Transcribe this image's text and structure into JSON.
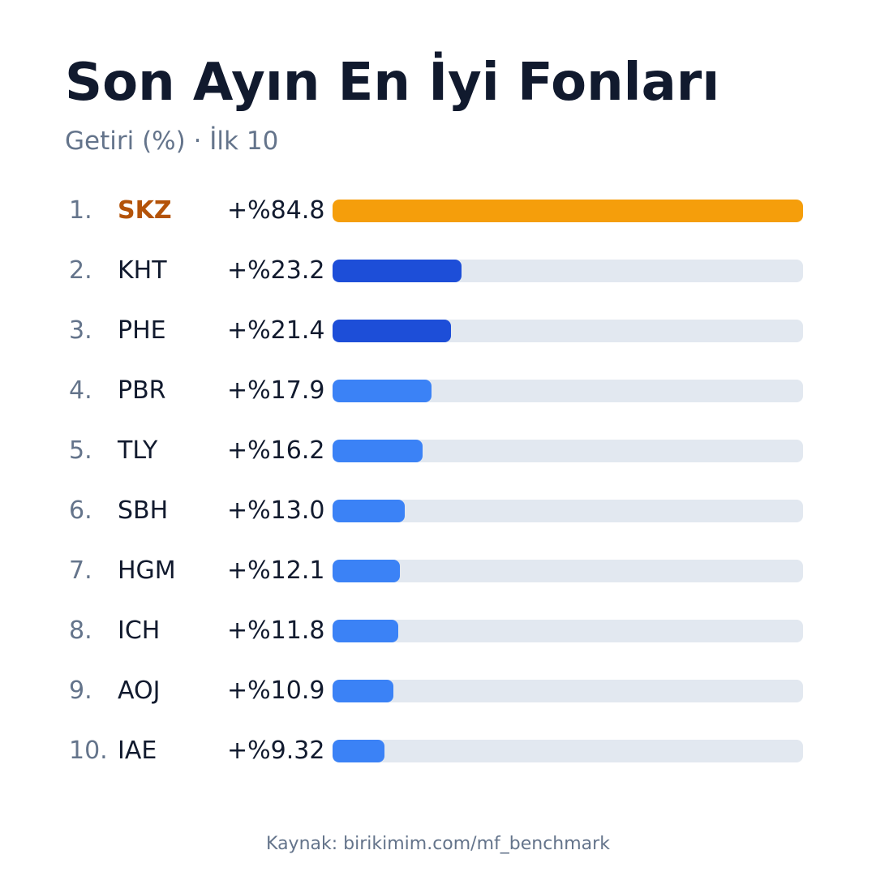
{
  "title": "Son Ayın En İyi Fonları",
  "subtitle": "Getiri (%) · İlk 10",
  "source": "Kaynak: birikimim.com/mf_benchmark",
  "colors": {
    "top": "#f59e0b",
    "top_text": "#b45309",
    "dark_blue": "#1d4ed8",
    "light_blue": "#3b82f6",
    "track": "#e2e8f0"
  },
  "chart_data": {
    "type": "bar",
    "orientation": "horizontal",
    "title": "Son Ayın En İyi Fonları",
    "subtitle": "Getiri (%) · İlk 10",
    "xlim": [
      0,
      84.8
    ],
    "categories": [
      "SKZ",
      "KHT",
      "PHE",
      "PBR",
      "TLY",
      "SBH",
      "HGM",
      "ICH",
      "AOJ",
      "IAE"
    ],
    "values": [
      84.8,
      23.2,
      21.4,
      17.9,
      16.2,
      13.0,
      12.1,
      11.8,
      10.9,
      9.32
    ],
    "ranks": [
      "1.",
      "2.",
      "3.",
      "4.",
      "5.",
      "6.",
      "7.",
      "8.",
      "9.",
      "10."
    ],
    "value_labels": [
      "+%84.8",
      "+%23.2",
      "+%21.4",
      "+%17.9",
      "+%16.2",
      "+%13.0",
      "+%12.1",
      "+%11.8",
      "+%10.9",
      "+%9.32"
    ],
    "bar_colors": [
      "#f59e0b",
      "#1d4ed8",
      "#1d4ed8",
      "#3b82f6",
      "#3b82f6",
      "#3b82f6",
      "#3b82f6",
      "#3b82f6",
      "#3b82f6",
      "#3b82f6"
    ]
  }
}
